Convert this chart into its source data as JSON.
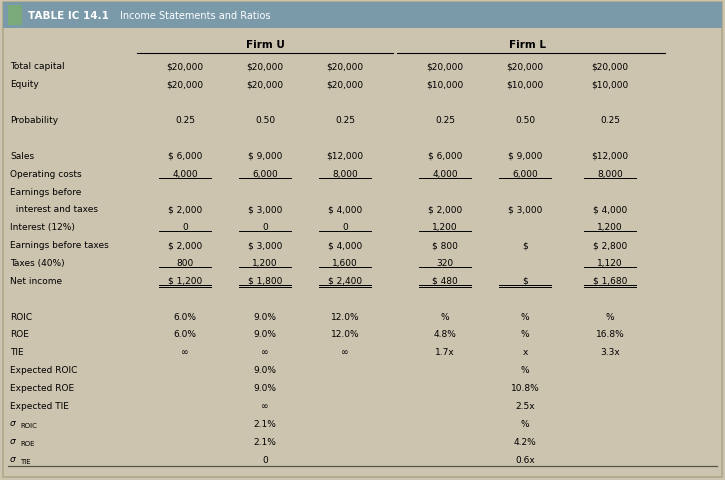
{
  "title": "TABLE IC 14.1",
  "subtitle": "Income Statements and Ratios",
  "bg_color": "#cdc4b0",
  "header_bg": "#7a9aaa",
  "accent_color": "#7aaa7a",
  "rows": [
    {
      "label": "Total capital",
      "u": [
        "$20,000",
        "$20,000",
        "$20,000"
      ],
      "l": [
        "$20,000",
        "$20,000",
        "$20,000"
      ],
      "ul_u": [
        false,
        false,
        false
      ],
      "ul_l": [
        false,
        false,
        false
      ],
      "dbl_u": false,
      "dbl_l": false
    },
    {
      "label": "Equity",
      "u": [
        "$20,000",
        "$20,000",
        "$20,000"
      ],
      "l": [
        "$10,000",
        "$10,000",
        "$10,000"
      ],
      "ul_u": [
        false,
        false,
        false
      ],
      "ul_l": [
        false,
        false,
        false
      ],
      "dbl_u": false,
      "dbl_l": false
    },
    {
      "label": "",
      "u": [
        "",
        "",
        ""
      ],
      "l": [
        "",
        "",
        ""
      ],
      "ul_u": [
        false,
        false,
        false
      ],
      "ul_l": [
        false,
        false,
        false
      ],
      "dbl_u": false,
      "dbl_l": false
    },
    {
      "label": "Probability",
      "u": [
        "0.25",
        "0.50",
        "0.25"
      ],
      "l": [
        "0.25",
        "0.50",
        "0.25"
      ],
      "ul_u": [
        false,
        false,
        false
      ],
      "ul_l": [
        false,
        false,
        false
      ],
      "dbl_u": false,
      "dbl_l": false
    },
    {
      "label": "",
      "u": [
        "",
        "",
        ""
      ],
      "l": [
        "",
        "",
        ""
      ],
      "ul_u": [
        false,
        false,
        false
      ],
      "ul_l": [
        false,
        false,
        false
      ],
      "dbl_u": false,
      "dbl_l": false
    },
    {
      "label": "Sales",
      "u": [
        "$ 6,000",
        "$ 9,000",
        "$12,000"
      ],
      "l": [
        "$ 6,000",
        "$ 9,000",
        "$12,000"
      ],
      "ul_u": [
        false,
        false,
        false
      ],
      "ul_l": [
        false,
        false,
        false
      ],
      "dbl_u": false,
      "dbl_l": false
    },
    {
      "label": "Operating costs",
      "u": [
        "4,000",
        "6,000",
        "8,000"
      ],
      "l": [
        "4,000",
        "6,000",
        "8,000"
      ],
      "ul_u": [
        true,
        true,
        true
      ],
      "ul_l": [
        true,
        true,
        true
      ],
      "dbl_u": false,
      "dbl_l": false
    },
    {
      "label": "Earnings before",
      "u": [
        "",
        "",
        ""
      ],
      "l": [
        "",
        "",
        ""
      ],
      "ul_u": [
        false,
        false,
        false
      ],
      "ul_l": [
        false,
        false,
        false
      ],
      "dbl_u": false,
      "dbl_l": false
    },
    {
      "label": "  interest and taxes",
      "u": [
        "$ 2,000",
        "$ 3,000",
        "$ 4,000"
      ],
      "l": [
        "$ 2,000",
        "$ 3,000",
        "$ 4,000"
      ],
      "ul_u": [
        false,
        false,
        false
      ],
      "ul_l": [
        false,
        false,
        false
      ],
      "dbl_u": false,
      "dbl_l": false
    },
    {
      "label": "Interest (12%)",
      "u": [
        "0",
        "0",
        "0"
      ],
      "l": [
        "1,200",
        "",
        "1,200"
      ],
      "ul_u": [
        true,
        true,
        true
      ],
      "ul_l": [
        true,
        false,
        true
      ],
      "dbl_u": false,
      "dbl_l": false
    },
    {
      "label": "Earnings before taxes",
      "u": [
        "$ 2,000",
        "$ 3,000",
        "$ 4,000"
      ],
      "l": [
        "$ 800",
        "$",
        "$ 2,800"
      ],
      "ul_u": [
        false,
        false,
        false
      ],
      "ul_l": [
        false,
        false,
        false
      ],
      "dbl_u": false,
      "dbl_l": false
    },
    {
      "label": "Taxes (40%)",
      "u": [
        "800",
        "1,200",
        "1,600"
      ],
      "l": [
        "320",
        "",
        "1,120"
      ],
      "ul_u": [
        true,
        true,
        true
      ],
      "ul_l": [
        true,
        false,
        true
      ],
      "dbl_u": false,
      "dbl_l": false
    },
    {
      "label": "Net income",
      "u": [
        "$ 1,200",
        "$ 1,800",
        "$ 2,400"
      ],
      "l": [
        "$ 480",
        "$",
        "$ 1,680"
      ],
      "ul_u": [
        true,
        true,
        true
      ],
      "ul_l": [
        true,
        true,
        true
      ],
      "dbl_u": true,
      "dbl_l": true
    },
    {
      "label": "",
      "u": [
        "",
        "",
        ""
      ],
      "l": [
        "",
        "",
        ""
      ],
      "ul_u": [
        false,
        false,
        false
      ],
      "ul_l": [
        false,
        false,
        false
      ],
      "dbl_u": false,
      "dbl_l": false
    },
    {
      "label": "ROIC",
      "u": [
        "6.0%",
        "9.0%",
        "12.0%"
      ],
      "l": [
        "%",
        "%",
        "%"
      ],
      "ul_u": [
        false,
        false,
        false
      ],
      "ul_l": [
        false,
        false,
        false
      ],
      "dbl_u": false,
      "dbl_l": false
    },
    {
      "label": "ROE",
      "u": [
        "6.0%",
        "9.0%",
        "12.0%"
      ],
      "l": [
        "4.8%",
        "%",
        "16.8%"
      ],
      "ul_u": [
        false,
        false,
        false
      ],
      "ul_l": [
        false,
        false,
        false
      ],
      "dbl_u": false,
      "dbl_l": false
    },
    {
      "label": "TIE",
      "u": [
        "∞",
        "∞",
        "∞"
      ],
      "l": [
        "1.7x",
        "x",
        "3.3x"
      ],
      "ul_u": [
        false,
        false,
        false
      ],
      "ul_l": [
        false,
        false,
        false
      ],
      "dbl_u": false,
      "dbl_l": false
    },
    {
      "label": "Expected ROIC",
      "u": [
        "",
        "9.0%",
        ""
      ],
      "l": [
        "",
        "%",
        ""
      ],
      "ul_u": [
        false,
        false,
        false
      ],
      "ul_l": [
        false,
        false,
        false
      ],
      "dbl_u": false,
      "dbl_l": false
    },
    {
      "label": "Expected ROE",
      "u": [
        "",
        "9.0%",
        ""
      ],
      "l": [
        "",
        "10.8%",
        ""
      ],
      "ul_u": [
        false,
        false,
        false
      ],
      "ul_l": [
        false,
        false,
        false
      ],
      "dbl_u": false,
      "dbl_l": false
    },
    {
      "label": "Expected TIE",
      "u": [
        "",
        "∞",
        ""
      ],
      "l": [
        "",
        "2.5x",
        ""
      ],
      "ul_u": [
        false,
        false,
        false
      ],
      "ul_l": [
        false,
        false,
        false
      ],
      "dbl_u": false,
      "dbl_l": false
    },
    {
      "label": "σROIC",
      "u": [
        "",
        "2.1%",
        ""
      ],
      "l": [
        "",
        "%",
        ""
      ],
      "ul_u": [
        false,
        false,
        false
      ],
      "ul_l": [
        false,
        false,
        false
      ],
      "dbl_u": false,
      "dbl_l": false
    },
    {
      "label": "σROE",
      "u": [
        "",
        "2.1%",
        ""
      ],
      "l": [
        "",
        "4.2%",
        ""
      ],
      "ul_u": [
        false,
        false,
        false
      ],
      "ul_l": [
        false,
        false,
        false
      ],
      "dbl_u": false,
      "dbl_l": false
    },
    {
      "label": "σTIE",
      "u": [
        "",
        "0",
        ""
      ],
      "l": [
        "",
        "0.6x",
        ""
      ],
      "ul_u": [
        false,
        false,
        false
      ],
      "ul_l": [
        false,
        false,
        false
      ],
      "dbl_u": false,
      "dbl_l": false
    }
  ],
  "sigma_rows": [
    20,
    21,
    22
  ],
  "sigma_labels": [
    "σROIC",
    "σROE",
    "σTIE"
  ],
  "sigma_subs": [
    "ROIC",
    "ROE",
    "TIE"
  ]
}
